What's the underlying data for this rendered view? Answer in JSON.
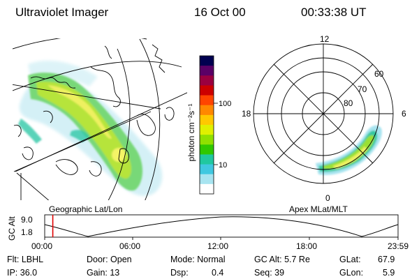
{
  "header": {
    "instrument": "Ultraviolet Imager",
    "date": "16 Oct 00",
    "time": "00:33:38 UT"
  },
  "geo_map": {
    "label": "Geographic Lat/Lon"
  },
  "colorbar": {
    "unit_label": "photon cm⁻²s⁻¹",
    "ticks": [
      "100",
      "10"
    ],
    "colors": [
      "#000050",
      "#5a0066",
      "#9a0040",
      "#cc0000",
      "#ff4400",
      "#ff8800",
      "#ffc800",
      "#e0f000",
      "#90e000",
      "#30c800",
      "#20c8a0",
      "#40c8e0",
      "#a8e4f0",
      "#ffffff"
    ]
  },
  "polar_plot": {
    "label": "Apex MLat/MLT",
    "mlt_labels": [
      "12",
      "18",
      "6",
      "0"
    ],
    "mlat_labels": [
      "60",
      "70",
      "80"
    ]
  },
  "altitude_panel": {
    "axis_title": "GC Alt",
    "y_ticks": [
      "9.0",
      "1.8"
    ],
    "x_ticks": [
      "00:00",
      "06:00",
      "12:00",
      "18:00",
      "23:59"
    ],
    "current_time_fraction": 0.023
  },
  "info": {
    "row1": {
      "flt": "Flt: LBHL",
      "door": "Door: Open",
      "mode": "Mode: Normal",
      "gcalt": "GC Alt: 5.7 Re",
      "glat_label": "GLat:",
      "glat_value": "67.9"
    },
    "row2": {
      "ip": "IP: 36.0",
      "gain": "Gain: 13",
      "dsp_label": "Dsp:",
      "dsp_value": "0.4",
      "seq": "Seq: 39",
      "glon_label": "GLon:",
      "glon_value": "5.9"
    }
  }
}
